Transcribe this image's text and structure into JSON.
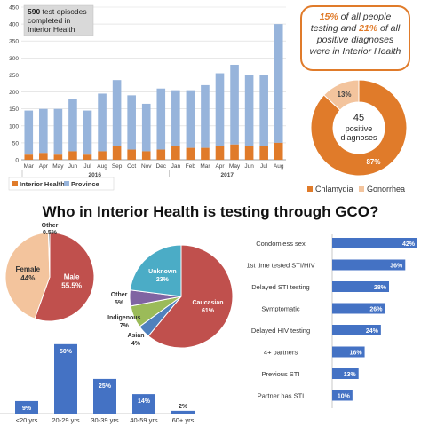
{
  "colors": {
    "interior": "#e07b2a",
    "province": "#97b4db",
    "female": "#f3c49d",
    "male": "#c0504d",
    "caucasian": "#c0504d",
    "unknown": "#4bacc6",
    "other": "#8064a2",
    "indigenous": "#9bbb59",
    "asian": "#4f81bd",
    "age_bar": "#4472c4",
    "reason_bar": "#4472c4",
    "accent": "#e07b2a"
  },
  "callout": {
    "pct1": "15%",
    "text1": " of all people testing and ",
    "pct2": "21%",
    "text2": " of all positive diagnoses were in Interior Health"
  },
  "section_heading": "Who in Interior Health is testing through GCO?",
  "chart_data": [
    {
      "type": "bar",
      "stacked": true,
      "annotation": "590 test episodes completed in Interior Health",
      "categories": [
        "Mar",
        "Apr",
        "May",
        "Jun",
        "Jul",
        "Aug",
        "Sep",
        "Oct",
        "Nov",
        "Dec",
        "Jan",
        "Feb",
        "Mar",
        "Apr",
        "May",
        "Jun",
        "Jul",
        "Aug"
      ],
      "years": [
        {
          "label": "2016",
          "span": [
            0,
            9
          ]
        },
        {
          "label": "2017",
          "span": [
            10,
            17
          ]
        }
      ],
      "ylim": [
        0,
        450
      ],
      "yticks": [
        "0",
        "50",
        "100",
        "150",
        "200",
        "250",
        "300",
        "350",
        "400",
        "450"
      ],
      "grid": true,
      "legend": "bottom-left",
      "series": [
        {
          "name": "Interior Health",
          "values": [
            15,
            20,
            15,
            25,
            15,
            25,
            40,
            30,
            25,
            30,
            40,
            35,
            35,
            40,
            45,
            40,
            40,
            50
          ]
        },
        {
          "name": "Province",
          "values": [
            130,
            130,
            135,
            155,
            130,
            170,
            195,
            160,
            140,
            180,
            165,
            170,
            185,
            215,
            235,
            210,
            210,
            350
          ]
        }
      ]
    },
    {
      "type": "pie",
      "center_number": "45",
      "center_label": "positive diagnoses",
      "legend": "bottom",
      "labels": [
        "Chlamydia",
        "Gonorrhea"
      ],
      "values": [
        87,
        13
      ],
      "value_labels": [
        "87%",
        "13%"
      ]
    },
    {
      "type": "pie",
      "labels": [
        "Male",
        "Female",
        "Other"
      ],
      "values": [
        55.5,
        44,
        0.5
      ],
      "value_labels": [
        "55.5%",
        "44%",
        "0.5%"
      ]
    },
    {
      "type": "pie",
      "labels": [
        "Caucasian",
        "Asian",
        "Indigenous",
        "Other",
        "Unknown"
      ],
      "values": [
        61,
        4,
        7,
        5,
        23
      ],
      "value_labels": [
        "61%",
        "4%",
        "7%",
        "5%",
        "23%"
      ]
    },
    {
      "type": "bar",
      "categories": [
        "<20 yrs",
        "20-29 yrs",
        "30-39 yrs",
        "40-59 yrs",
        "60+ yrs"
      ],
      "values": [
        9,
        50,
        25,
        14,
        2
      ],
      "value_labels": [
        "9%",
        "50%",
        "25%",
        "14%",
        "2%"
      ],
      "ylim": [
        0,
        55
      ]
    },
    {
      "type": "bar",
      "orientation": "horizontal",
      "categories": [
        "Condomless sex",
        "1st time tested STI/HIV",
        "Delayed STI testing",
        "Symptomatic",
        "Delayed HIV testing",
        "4+ partners",
        "Previous STI",
        "Partner has STI"
      ],
      "values": [
        42,
        36,
        28,
        26,
        24,
        16,
        13,
        10
      ],
      "value_labels": [
        "42%",
        "36%",
        "28%",
        "26%",
        "24%",
        "16%",
        "13%",
        "10%"
      ],
      "xlim": [
        0,
        42
      ]
    }
  ]
}
